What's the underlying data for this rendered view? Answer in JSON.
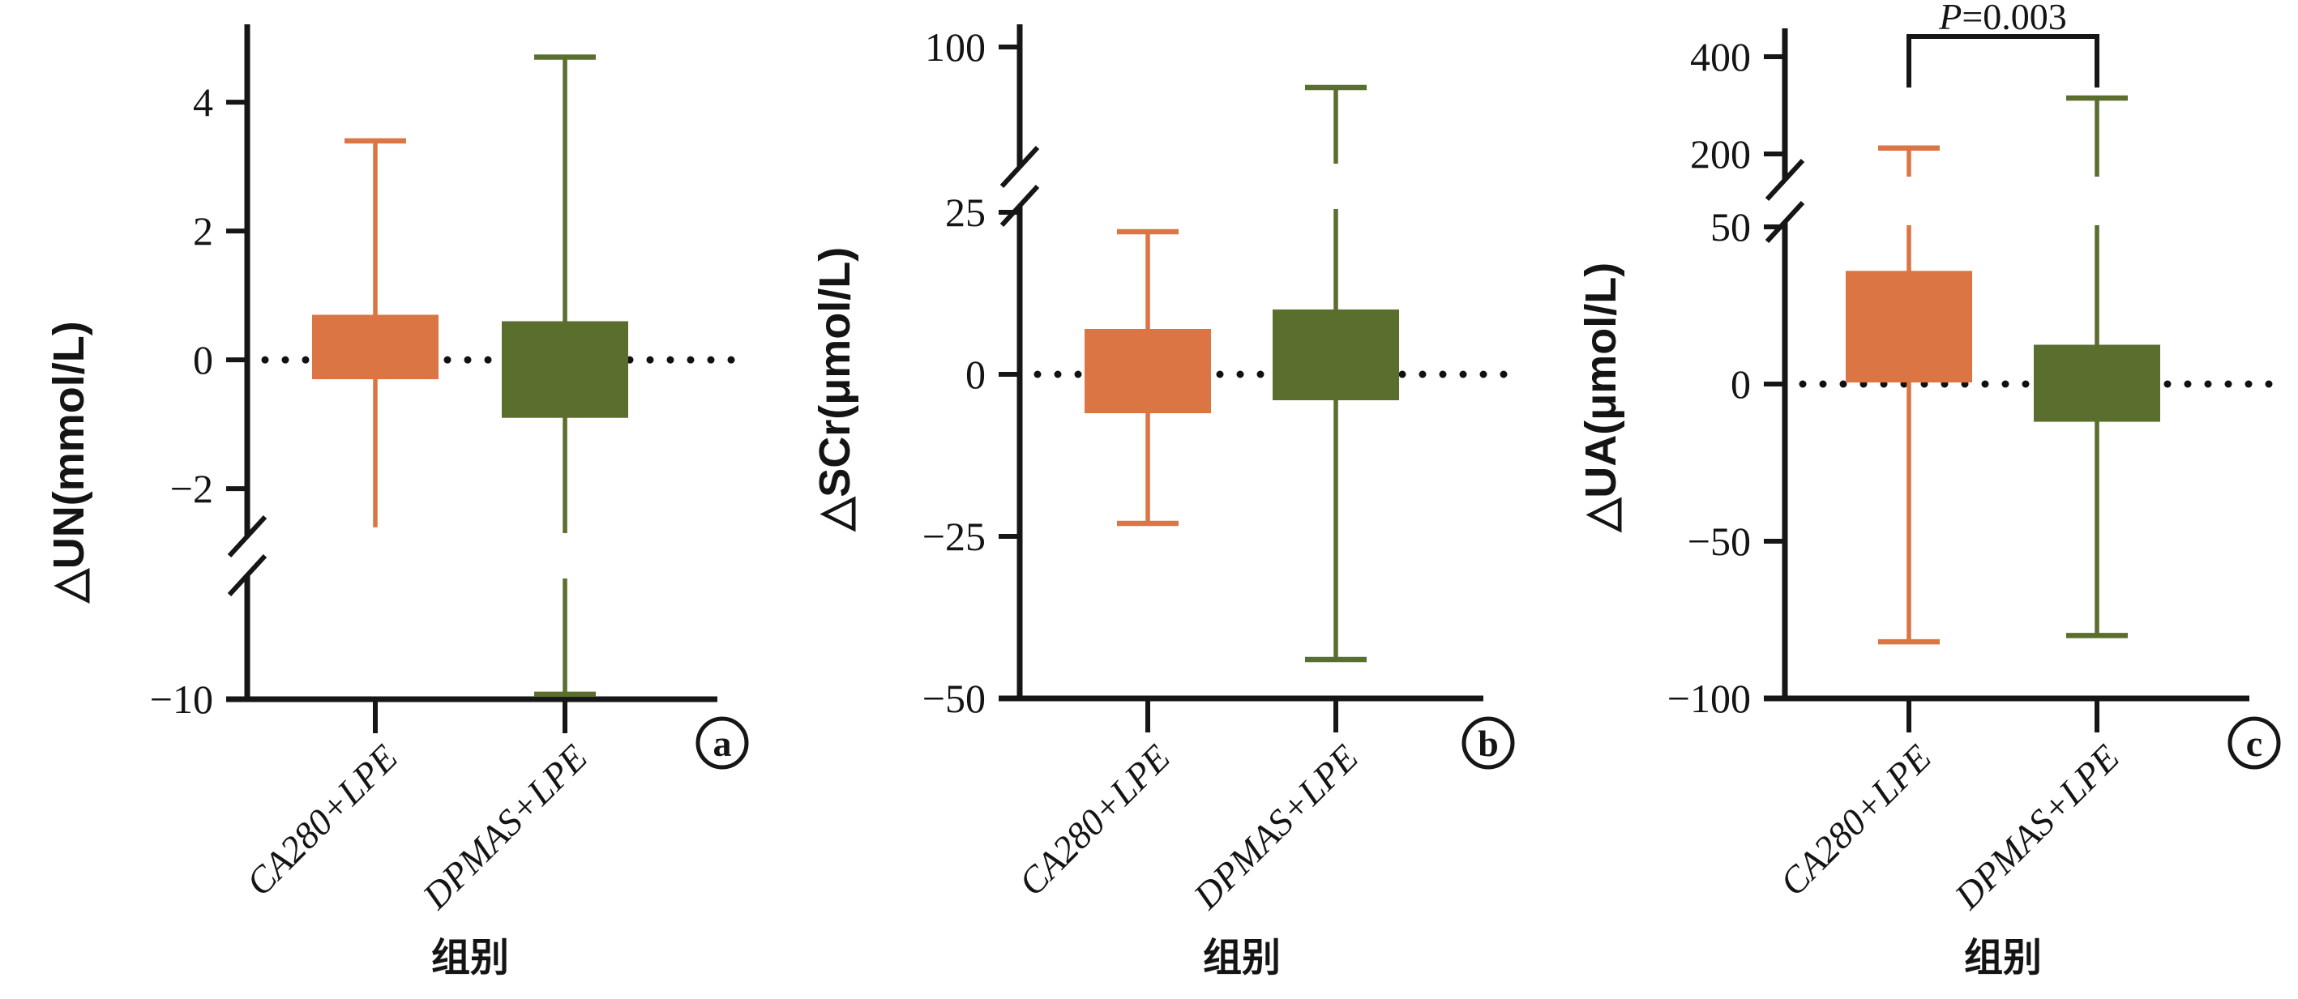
{
  "figure": {
    "background": "#ffffff",
    "group_axis_label": "组别",
    "categories": [
      "CA280+LPE",
      "DPMAS+LPE"
    ],
    "colors": {
      "ca280_lpe": "#DC7544",
      "dpmas_lpe": "#5A6E2E",
      "axis": "#161616",
      "dotted_line": "#111111"
    }
  },
  "chart_data": [
    {
      "type": "box",
      "panel_letter": "a",
      "ylabel": "△UN(mmol/L)",
      "xlabel": "组别",
      "categories": [
        "CA280+LPE",
        "DPMAS+LPE"
      ],
      "y_ticks": [
        4,
        2,
        0,
        -2,
        -10
      ],
      "y_tick_labels": [
        "4",
        "2",
        "0",
        "−2",
        "−10"
      ],
      "axis_break": {
        "between_values": [
          -2,
          -10
        ]
      },
      "zero_reference_line": "dotted",
      "median_shown": false,
      "legend_position": "none",
      "series": [
        {
          "name": "CA280+LPE",
          "color": "#DC7544",
          "whisker_min": -2.6,
          "q1": -0.3,
          "q3": 0.7,
          "whisker_max": 3.4,
          "min_cap": false,
          "max_cap": true
        },
        {
          "name": "DPMAS+LPE",
          "color": "#5A6E2E",
          "whisker_min": -9.9,
          "q1": -0.9,
          "q3": 0.6,
          "whisker_max": 4.7,
          "min_cap": true,
          "max_cap": true
        }
      ],
      "annotation": null
    },
    {
      "type": "box",
      "panel_letter": "b",
      "ylabel": "△SCr(μmol/L)",
      "xlabel": "组别",
      "categories": [
        "CA280+LPE",
        "DPMAS+LPE"
      ],
      "y_ticks": [
        100,
        25,
        0,
        -25,
        -50
      ],
      "y_tick_labels": [
        "100",
        "25",
        "0",
        "−25",
        "−50"
      ],
      "axis_break": {
        "between_values": [
          25,
          100
        ]
      },
      "zero_reference_line": "dotted",
      "median_shown": false,
      "legend_position": "none",
      "series": [
        {
          "name": "CA280+LPE",
          "color": "#DC7544",
          "whisker_min": -23,
          "q1": -6,
          "q3": 7,
          "whisker_max": 22,
          "min_cap": true,
          "max_cap": true
        },
        {
          "name": "DPMAS+LPE",
          "color": "#5A6E2E",
          "whisker_min": -44,
          "q1": -4,
          "q3": 10,
          "whisker_max": 80,
          "min_cap": true,
          "max_cap": true
        }
      ],
      "annotation": null
    },
    {
      "type": "box",
      "panel_letter": "c",
      "ylabel": "△UA(μmol/L)",
      "xlabel": "组别",
      "categories": [
        "CA280+LPE",
        "DPMAS+LPE"
      ],
      "y_ticks": [
        400,
        200,
        50,
        0,
        -50,
        -100
      ],
      "y_tick_labels": [
        "400",
        "200",
        "50",
        "0",
        "−50",
        "−100"
      ],
      "axis_break": {
        "between_values": [
          50,
          200
        ]
      },
      "zero_reference_line": "dotted",
      "median_shown": false,
      "legend_position": "none",
      "series": [
        {
          "name": "CA280+LPE",
          "color": "#DC7544",
          "whisker_min": -82,
          "q1": 0.5,
          "q3": 36,
          "whisker_max": 212,
          "min_cap": true,
          "max_cap": true
        },
        {
          "name": "DPMAS+LPE",
          "color": "#5A6E2E",
          "whisker_min": -80,
          "q1": -12,
          "q3": 12.5,
          "whisker_max": 315,
          "min_cap": true,
          "max_cap": true
        }
      ],
      "annotation": {
        "text": "P=0.003",
        "p_symbol": "P",
        "p_value_text": "=0.003",
        "between": [
          "CA280+LPE",
          "DPMAS+LPE"
        ]
      }
    }
  ]
}
